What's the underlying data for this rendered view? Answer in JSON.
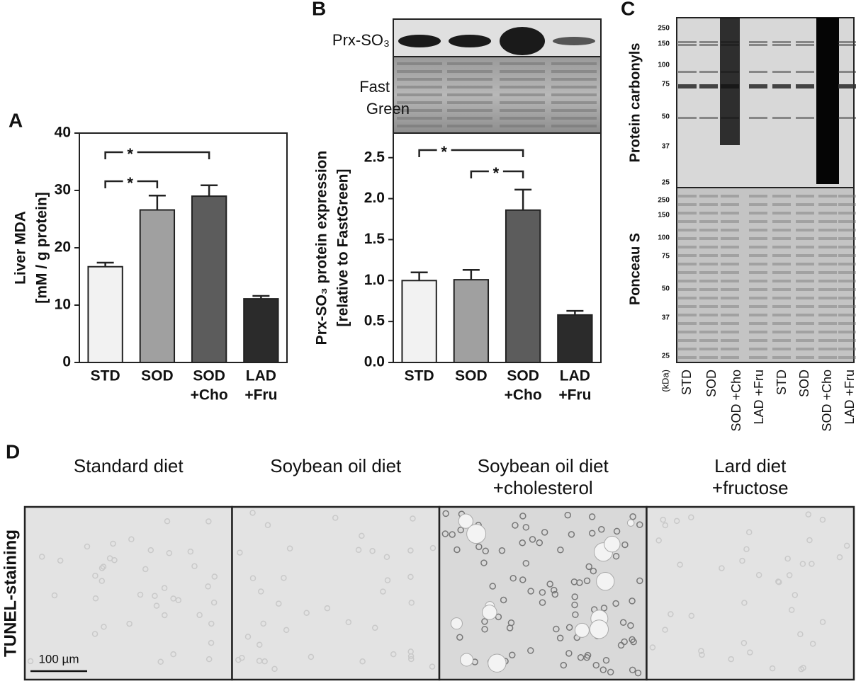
{
  "panels": [
    "A",
    "B",
    "C",
    "D"
  ],
  "chart_data": [
    {
      "type": "bar",
      "ylabel": [
        "Liver MDA",
        "[mM / g protein]"
      ],
      "categories": [
        [
          "STD"
        ],
        [
          "SOD"
        ],
        [
          "SOD",
          "+Cho"
        ],
        [
          "LAD",
          "+Fru"
        ]
      ],
      "values": [
        16.7,
        26.6,
        29.0,
        11.1
      ],
      "errors": [
        0.7,
        2.5,
        1.9,
        0.5
      ],
      "colors": [
        "#f2f2f2",
        "#a0a0a0",
        "#5c5c5c",
        "#2b2b2b"
      ],
      "ylim": [
        0,
        40
      ],
      "yticks": [
        0,
        10,
        20,
        30,
        40
      ],
      "significance": [
        {
          "from": 0,
          "to": 2,
          "label": "*"
        },
        {
          "from": 0,
          "to": 1,
          "label": "*"
        }
      ]
    },
    {
      "type": "bar",
      "ylabel": [
        "Prx-SO₃ protein expression",
        "[relative to FastGreen]"
      ],
      "categories": [
        [
          "STD"
        ],
        [
          "SOD"
        ],
        [
          "SOD",
          "+Cho"
        ],
        [
          "LAD",
          "+Fru"
        ]
      ],
      "values": [
        1.0,
        1.01,
        1.86,
        0.58
      ],
      "errors": [
        0.1,
        0.12,
        0.25,
        0.05
      ],
      "colors": [
        "#f2f2f2",
        "#a0a0a0",
        "#5c5c5c",
        "#2b2b2b"
      ],
      "ylim": [
        0,
        2.8
      ],
      "yticks": [
        {
          "value": 0,
          "label": "0.0"
        },
        0.5,
        {
          "value": 1,
          "label": "1.0"
        },
        1.5,
        {
          "value": 2,
          "label": "2.0"
        },
        2.5
      ],
      "significance": [
        {
          "from": 0,
          "to": 2,
          "label": "*"
        },
        {
          "from": 1,
          "to": 2,
          "label": "*"
        }
      ]
    }
  ],
  "blot_b": {
    "labels": [
      "Prx-SO₃",
      "Fast",
      "Green"
    ]
  },
  "blot_c": {
    "sections": [
      "Protein carbonyls",
      "Ponceau S"
    ],
    "markers": [
      250,
      150,
      100,
      75,
      50,
      37,
      25
    ],
    "lanes": [
      "(kDa)",
      "STD",
      "SOD",
      "SOD +Cho",
      "LAD +Fru",
      "STD",
      "SOD",
      "SOD +Cho",
      "LAD +Fru"
    ]
  },
  "micrographs": {
    "titles": [
      [
        "Standard diet"
      ],
      [
        "Soybean oil diet"
      ],
      [
        "Soybean oil diet",
        "+cholesterol"
      ],
      [
        "Lard diet",
        "+fructose"
      ]
    ],
    "row_label": "TUNEL-staining",
    "scale_bar": "100 µm"
  }
}
